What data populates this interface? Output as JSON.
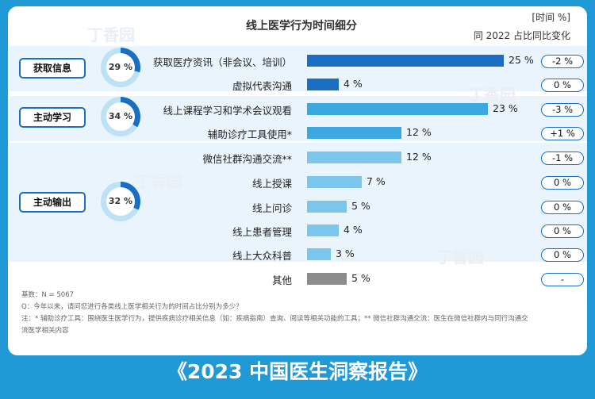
{
  "chart_data": {
    "type": "bar",
    "title": "线上医学行为时间细分",
    "unit_label": "[时间 %]",
    "change_header": "同 2022 占比同比变化",
    "groups": [
      {
        "name": "获取信息",
        "share": "29 %",
        "share_value": 29,
        "rows": [
          0,
          1
        ]
      },
      {
        "name": "主动学习",
        "share": "34 %",
        "share_value": 34,
        "rows": [
          2,
          3
        ]
      },
      {
        "name": "主动输出",
        "share": "32 %",
        "share_value": 32,
        "rows": [
          4,
          5,
          6,
          7,
          8
        ]
      }
    ],
    "rows": [
      {
        "label": "获取医疗资讯（非会议、培训）",
        "value": 25,
        "value_text": "25 %",
        "change": "-2 %"
      },
      {
        "label": "虚拟代表沟通",
        "value": 4,
        "value_text": "4 %",
        "change": "0 %"
      },
      {
        "label": "线上课程学习和学术会议观看",
        "value": 23,
        "value_text": "23 %",
        "change": "-3 %"
      },
      {
        "label": "辅助诊疗工具使用*",
        "value": 12,
        "value_text": "12 %",
        "change": "+1 %"
      },
      {
        "label": "微信社群沟通交流**",
        "value": 12,
        "value_text": "12 %",
        "change": "-1 %"
      },
      {
        "label": "线上授课",
        "value": 7,
        "value_text": "7 %",
        "change": "0 %"
      },
      {
        "label": "线上问诊",
        "value": 5,
        "value_text": "5 %",
        "change": "0 %"
      },
      {
        "label": "线上患者管理",
        "value": 4,
        "value_text": "4 %",
        "change": "0 %"
      },
      {
        "label": "线上大众科普",
        "value": 3,
        "value_text": "3 %",
        "change": "0 %"
      },
      {
        "label": "其他",
        "value": 5,
        "value_text": "5 %",
        "change": "-"
      }
    ],
    "xlim": [
      0,
      25
    ]
  },
  "colors": {
    "dark_blue": "#1a6fc2",
    "medium_blue": "#3ba8e0",
    "light_blue": "#7cc6ee",
    "gray": "#8c8c8c",
    "frame": "#1f9ad6",
    "band": "#eaf4fc",
    "ring_track": "#bde2f6"
  },
  "notes": {
    "base": "基数：N = 5067",
    "question": "Q：今年以来，请问您进行各类线上医学相关行为的时间占比分别为多少？",
    "footnote_line1": "注：* 辅助诊疗工具：围绕医生医学行为，提供疾病诊疗相关信息（如：疾病指南）查询、阅读等相关功能的工具；** 微信社群沟通交流：医生在微信社群内与同行沟通交",
    "footnote_line2": "流医学相关内容"
  },
  "footer": {
    "title": "《2023 中国医生洞察报告》"
  },
  "watermark": {
    "text": "丁香园"
  }
}
